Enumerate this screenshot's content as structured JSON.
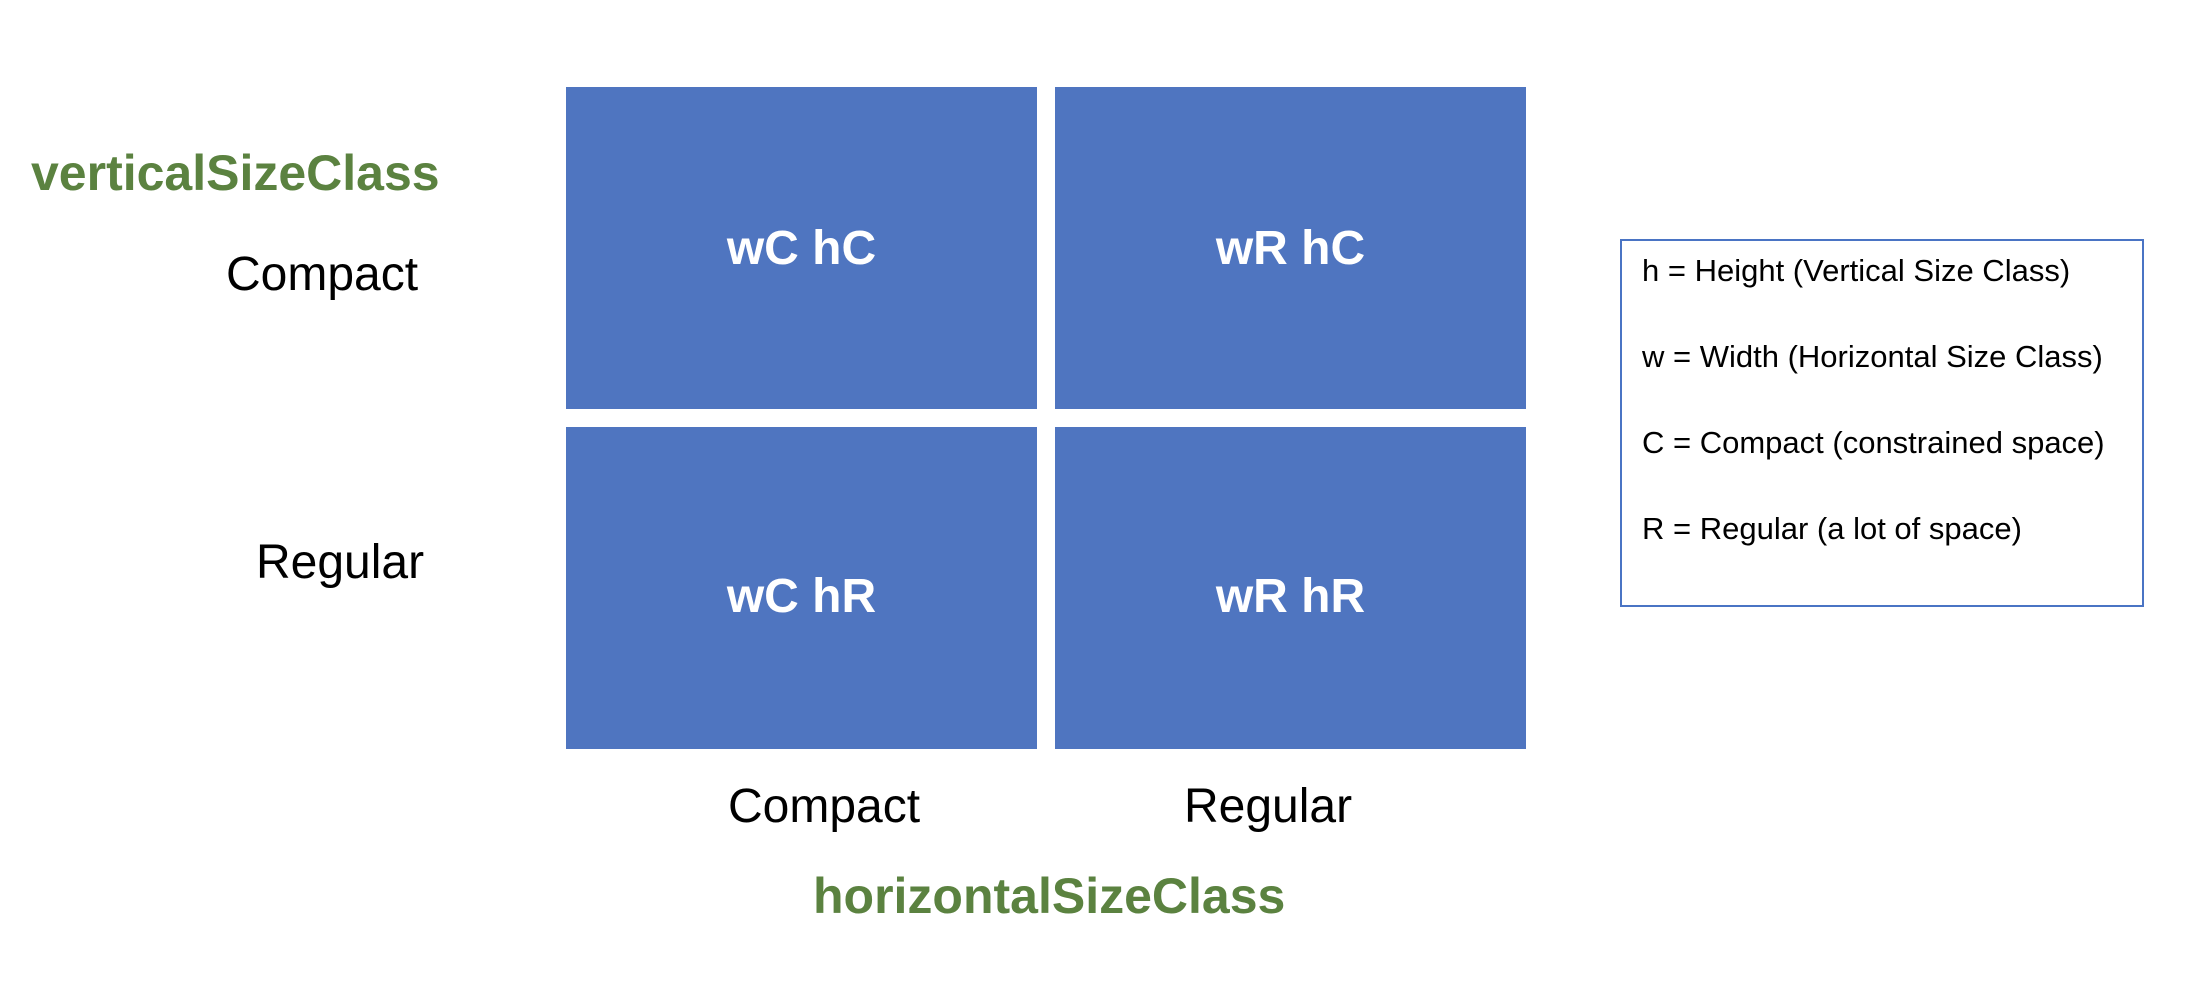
{
  "vertical_axis": {
    "title": "verticalSizeClass",
    "labels": {
      "compact": "Compact",
      "regular": "Regular"
    }
  },
  "horizontal_axis": {
    "title": "horizontalSizeClass",
    "labels": {
      "compact": "Compact",
      "regular": "Regular"
    }
  },
  "grid": {
    "cells": [
      {
        "label": "wC hC"
      },
      {
        "label": "wR hC"
      },
      {
        "label": "wC hR"
      },
      {
        "label": "wR hR"
      }
    ]
  },
  "legend": {
    "items": [
      "h = Height (Vertical Size Class)",
      "w = Width (Horizontal Size Class)",
      "C = Compact (constrained space)",
      "R = Regular (a lot of space)"
    ]
  },
  "colors": {
    "cell_fill": "#4f75c0",
    "axis_title": "#5b8240",
    "legend_border": "#4a74c4"
  }
}
